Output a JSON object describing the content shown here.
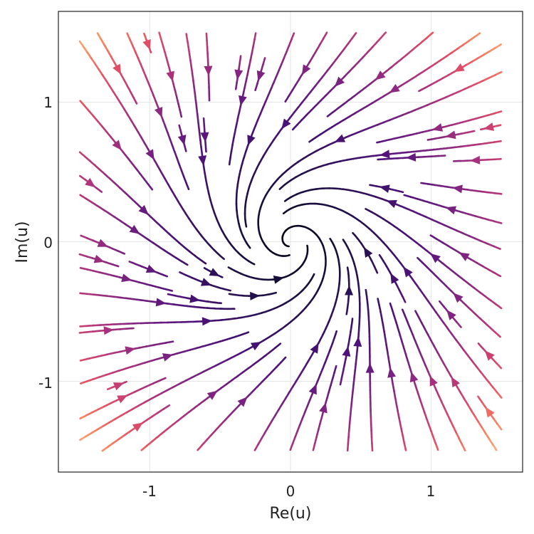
{
  "chart_data": {
    "type": "streamplot",
    "title": "",
    "xlabel": "Re(u)",
    "ylabel": "Im(u)",
    "xlim": [
      -1.65,
      1.65
    ],
    "ylim": [
      -1.65,
      1.65
    ],
    "xticks": [
      -1,
      0,
      1
    ],
    "yticks": [
      -1,
      0,
      1
    ],
    "xtick_labels": [
      "-1",
      "0",
      "1"
    ],
    "ytick_labels": [
      "-1",
      "0",
      "1"
    ],
    "domain": {
      "x": [
        -1.5,
        1.5
      ],
      "y": [
        -1.5,
        1.5
      ]
    },
    "grid": true,
    "legend": "none",
    "vector_field": "du/dt = (-0.5 + 1i) u - u|u|^2  (complex u = Re(u) + i Im(u)); stable spiral at origin, counter-clockwise",
    "colormap": "magma",
    "color_by": "vector magnitude",
    "colors": {
      "low": "#000004",
      "mid_low": "#3b0f70",
      "mid": "#8c2981",
      "mid_high": "#de4968",
      "high": "#fcfdbf"
    }
  }
}
